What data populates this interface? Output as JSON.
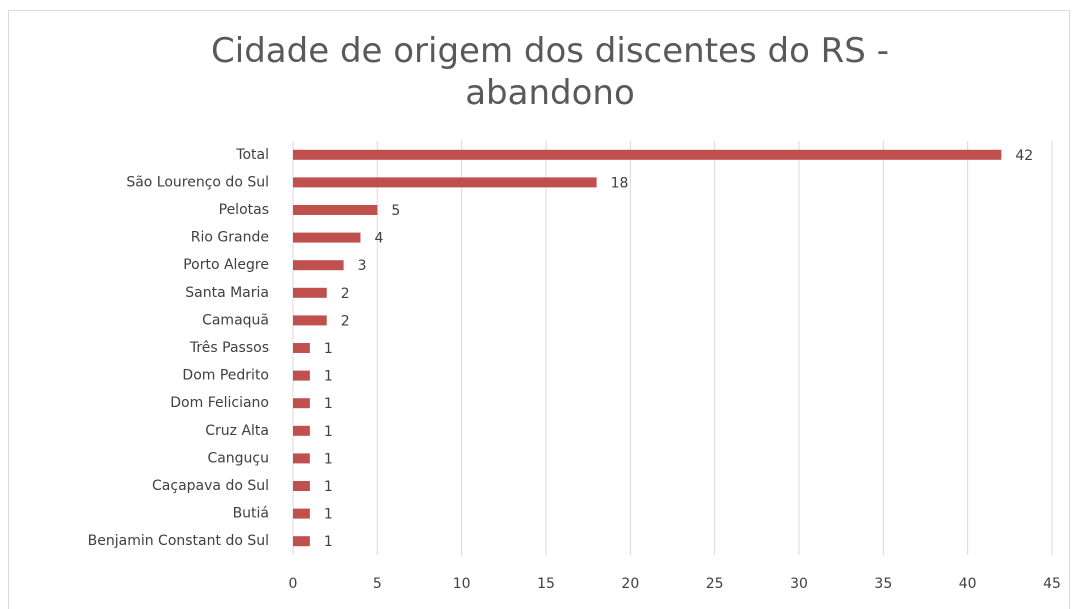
{
  "chart_data": {
    "type": "bar",
    "orientation": "horizontal",
    "title": "Cidade de origem dos discentes do RS - abandono",
    "categories": [
      "Total",
      "São Lourenço do Sul",
      "Pelotas",
      "Rio Grande",
      "Porto Alegre",
      "Santa Maria",
      "Camaquã",
      "Três Passos",
      "Dom Pedrito",
      "Dom Feliciano",
      "Cruz Alta",
      "Canguçu",
      "Caçapava do Sul",
      "Butiá",
      "Benjamin Constant do Sul"
    ],
    "values": [
      42,
      18,
      5,
      4,
      3,
      2,
      2,
      1,
      1,
      1,
      1,
      1,
      1,
      1,
      1
    ],
    "color": "#c0504d",
    "xlim": [
      0,
      45
    ],
    "xticks": [
      0,
      5,
      10,
      15,
      20,
      25,
      30,
      35,
      40,
      45
    ],
    "grid": true
  }
}
